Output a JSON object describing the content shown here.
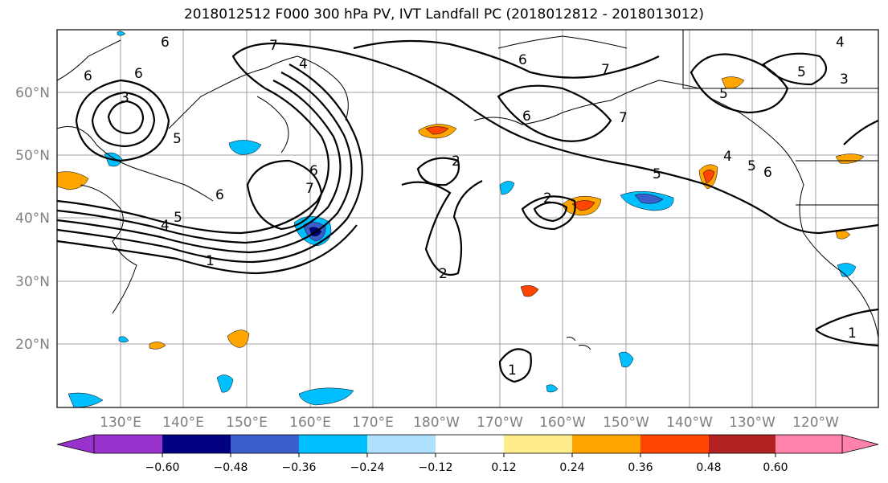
{
  "title": "2018012512 F000 300 hPa PV, IVT Landfall PC (2018012812 - 2018013012)",
  "map": {
    "lat_labels": [
      "60°N",
      "50°N",
      "40°N",
      "30°N",
      "20°N"
    ],
    "lon_labels": [
      "130°E",
      "140°E",
      "150°E",
      "160°E",
      "170°E",
      "180°W",
      "170°W",
      "160°W",
      "150°W",
      "140°W",
      "130°W",
      "120°W"
    ],
    "contour_labels": [
      "6",
      "6",
      "6",
      "3",
      "4",
      "5",
      "6",
      "7",
      "7",
      "6",
      "5",
      "4",
      "1",
      "2",
      "2",
      "2",
      "6",
      "7",
      "6",
      "5",
      "4",
      "3",
      "5",
      "6",
      "4",
      "5",
      "5",
      "7",
      "1",
      "1"
    ]
  },
  "colorbar": {
    "ticks": [
      "−0.60",
      "−0.48",
      "−0.36",
      "−0.24",
      "−0.12",
      "0.12",
      "0.24",
      "0.36",
      "0.48",
      "0.60"
    ],
    "colors": [
      "#9932cc",
      "#000080",
      "#3a5fcd",
      "#00bfff",
      "#b0e2ff",
      "#ffffff",
      "#ffec8b",
      "#ffa500",
      "#ff4500",
      "#b22222",
      "#ff82ab"
    ]
  }
}
